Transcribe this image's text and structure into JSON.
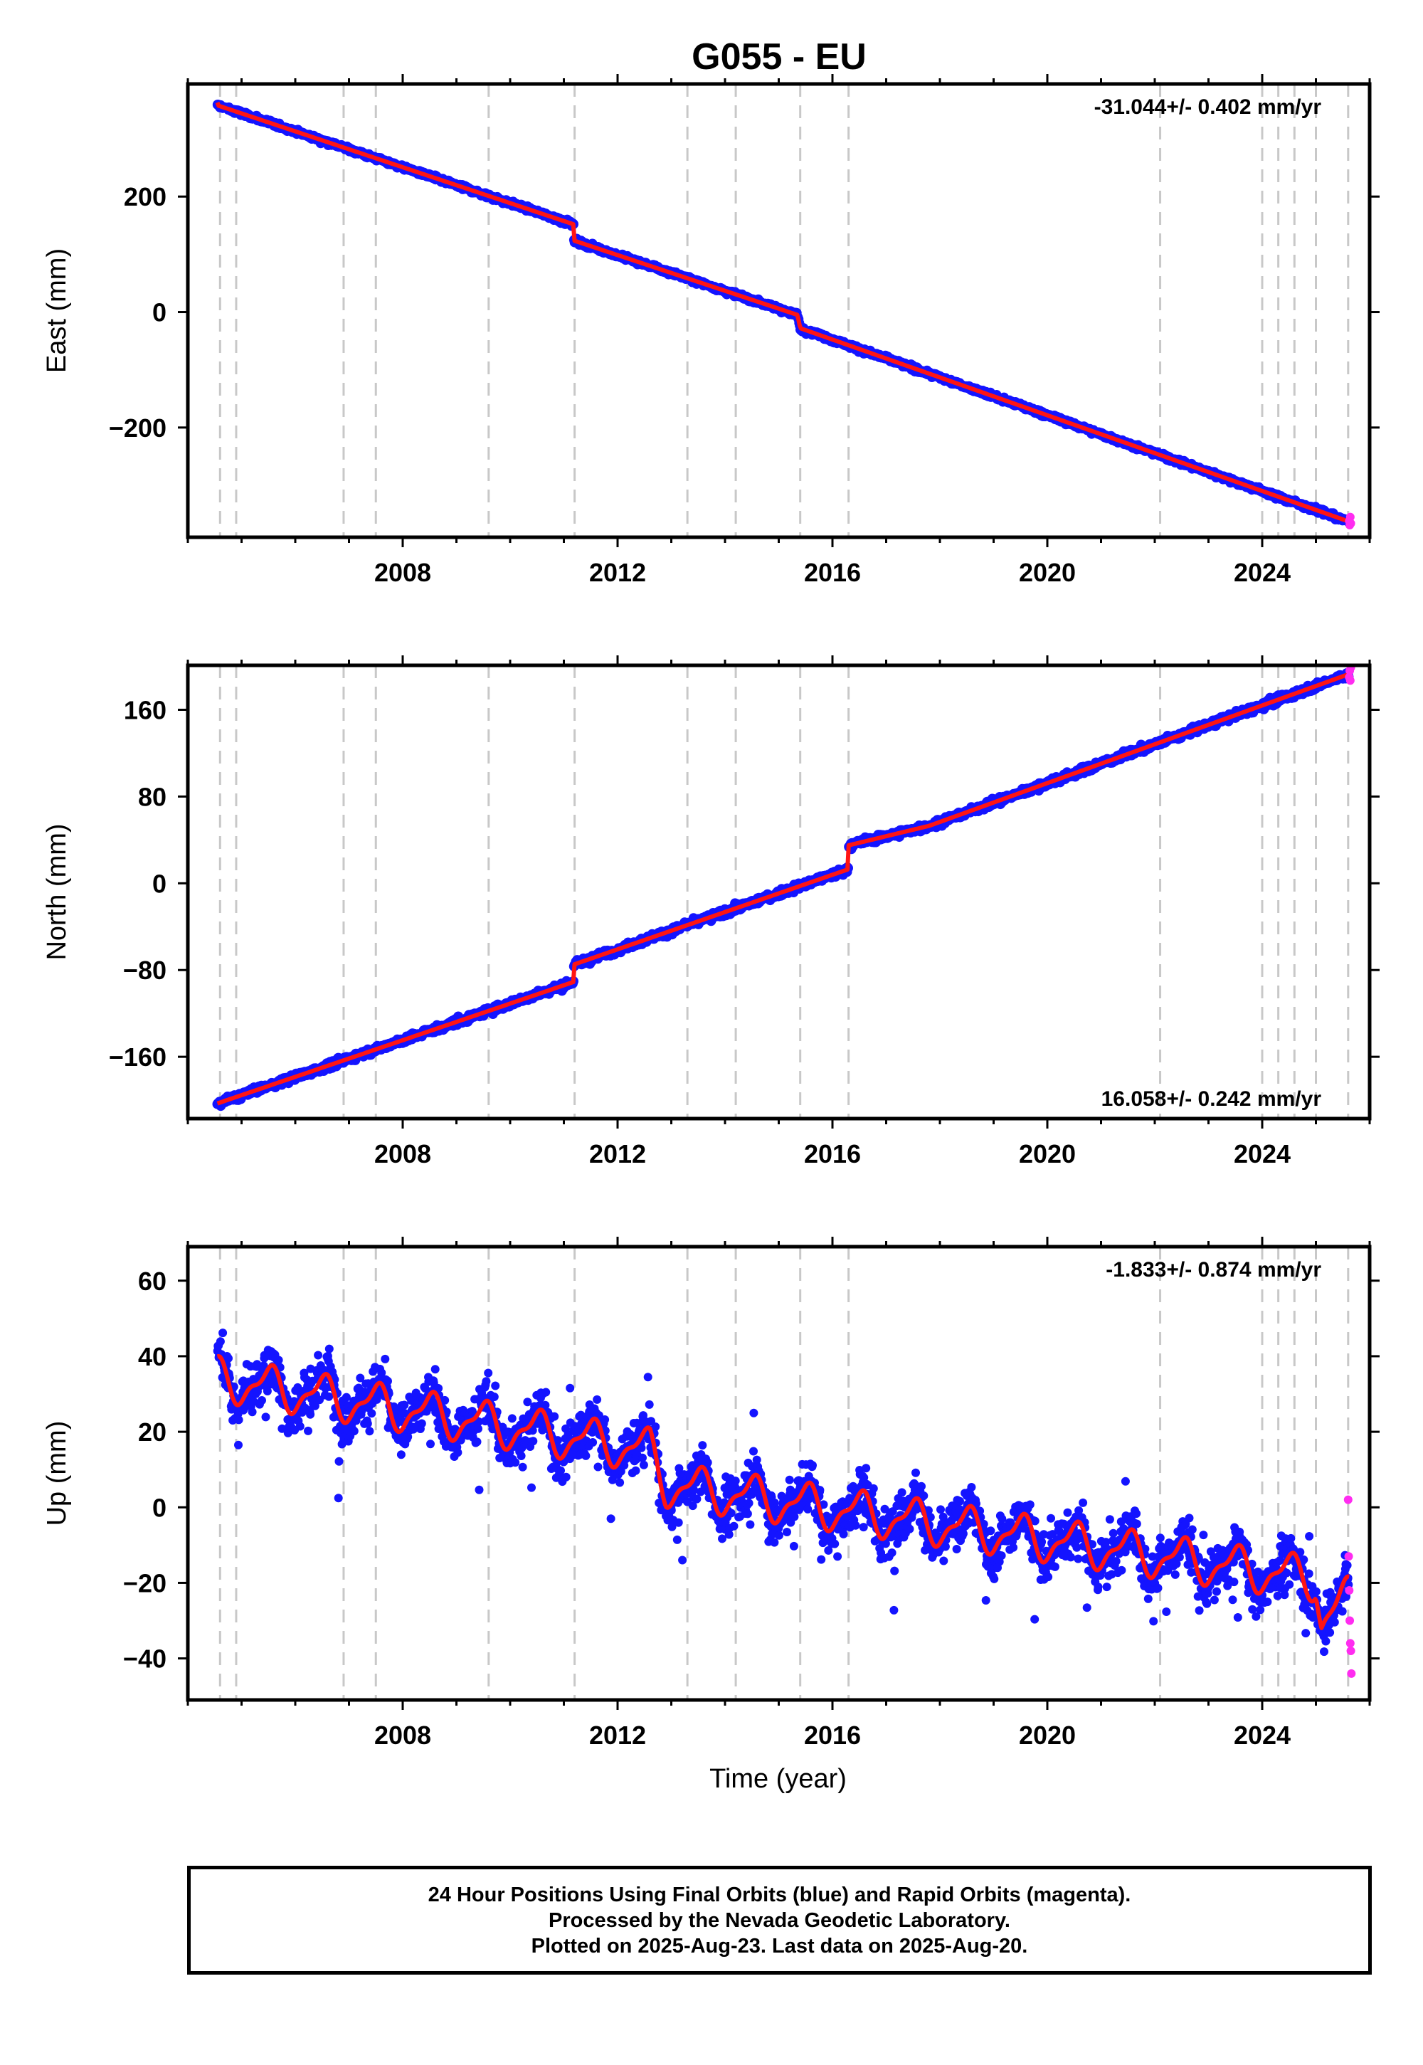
{
  "title": "G055 - EU",
  "colors": {
    "final_orbits": "#1414ff",
    "rapid_orbits": "#ff2cf0",
    "model": "#ff1414",
    "event_lines": "#c8c8c8",
    "frame": "#000000"
  },
  "caption": [
    "24 Hour Positions Using Final Orbits (blue) and Rapid Orbits (magenta).",
    "Processed by the Nevada Geodetic Laboratory.",
    "Plotted on 2025-Aug-23. Last data on 2025-Aug-20."
  ],
  "chart_data": [
    {
      "type": "scatter",
      "panel": "east",
      "ylabel": "East (mm)",
      "xlabel": "",
      "xlim": [
        2004.0,
        2026.0
      ],
      "ylim": [
        -390,
        395
      ],
      "xticks": [
        2008,
        2012,
        2016,
        2020,
        2024
      ],
      "yticks": [
        -200,
        0,
        200
      ],
      "ytick_labels": [
        "−200",
        "0",
        "200"
      ],
      "rate_label": "-31.044+/- 0.402 mm/yr",
      "rate_position": "top-right",
      "event_lines_x": [
        2004.6,
        2004.9,
        2006.9,
        2007.5,
        2009.6,
        2011.2,
        2013.3,
        2014.2,
        2015.4,
        2016.3,
        2022.1,
        2024.0,
        2024.3,
        2024.6,
        2025.0,
        2025.6
      ],
      "model_line": {
        "x": [
          2004.55,
          2004.55,
          2005.0,
          2011.18,
          2011.18,
          2015.35,
          2015.4,
          2025.62
        ],
        "y": [
          363,
          358,
          344,
          152,
          124,
          -5,
          -28,
          -363
        ]
      },
      "rapid_points": {
        "x": [
          2025.62,
          2025.63,
          2025.64,
          2025.65
        ],
        "y": [
          -362,
          -369,
          -355,
          -366
        ]
      },
      "noise_mm": 5,
      "grid": false
    },
    {
      "type": "scatter",
      "panel": "north",
      "ylabel": "North (mm)",
      "xlabel": "",
      "xlim": [
        2004.0,
        2026.0
      ],
      "ylim": [
        -217,
        201
      ],
      "xticks": [
        2008,
        2012,
        2016,
        2020,
        2024
      ],
      "yticks": [
        -160,
        -80,
        0,
        80,
        160
      ],
      "ytick_labels": [
        "−160",
        "−80",
        "0",
        "80",
        "160"
      ],
      "rate_label": "16.058+/- 0.242 mm/yr",
      "rate_position": "bottom-right",
      "event_lines_x": [
        2004.6,
        2004.9,
        2006.9,
        2007.5,
        2009.6,
        2011.2,
        2013.3,
        2014.2,
        2015.4,
        2016.3,
        2022.1,
        2024.0,
        2024.3,
        2024.6,
        2025.0,
        2025.6
      ],
      "model_line": {
        "x": [
          2004.55,
          2011.18,
          2011.18,
          2016.3,
          2016.3,
          2017.8,
          2025.62
        ],
        "y": [
          -203,
          -91,
          -75,
          13,
          35,
          53,
          193
        ]
      },
      "rapid_points": {
        "x": [
          2025.62,
          2025.63,
          2025.64,
          2025.65
        ],
        "y": [
          190,
          196,
          187,
          199
        ]
      },
      "noise_mm": 4,
      "grid": false
    },
    {
      "type": "scatter",
      "panel": "up",
      "ylabel": "Up (mm)",
      "xlabel": "Time (year)",
      "xlim": [
        2004.0,
        2026.0
      ],
      "ylim": [
        -51,
        69
      ],
      "xticks": [
        2008,
        2012,
        2016,
        2020,
        2024
      ],
      "yticks": [
        -40,
        -20,
        0,
        20,
        40,
        60
      ],
      "ytick_labels": [
        "−40",
        "−20",
        "0",
        "20",
        "40",
        "60"
      ],
      "rate_label": "-1.833+/- 0.874 mm/yr",
      "rate_position": "top-right",
      "event_lines_x": [
        2004.6,
        2004.9,
        2006.9,
        2007.5,
        2009.6,
        2011.2,
        2013.3,
        2014.2,
        2015.4,
        2016.3,
        2022.1,
        2024.0,
        2024.3,
        2024.6,
        2025.0,
        2025.6
      ],
      "model_line": {
        "x": [
          2004.55,
          2012.6,
          2012.9,
          2025.0,
          2025.1,
          2025.62
        ],
        "y": [
          34,
          15,
          6,
          -19,
          -30,
          -24
        ],
        "seasonal_amplitude_mm": 5
      },
      "rapid_points": {
        "x": [
          2025.6,
          2025.61,
          2025.62,
          2025.63,
          2025.64,
          2025.65,
          2025.66
        ],
        "y": [
          2,
          -13,
          -22,
          -30,
          -36,
          -38,
          -44
        ]
      },
      "noise_mm": 8,
      "grid": false
    }
  ]
}
